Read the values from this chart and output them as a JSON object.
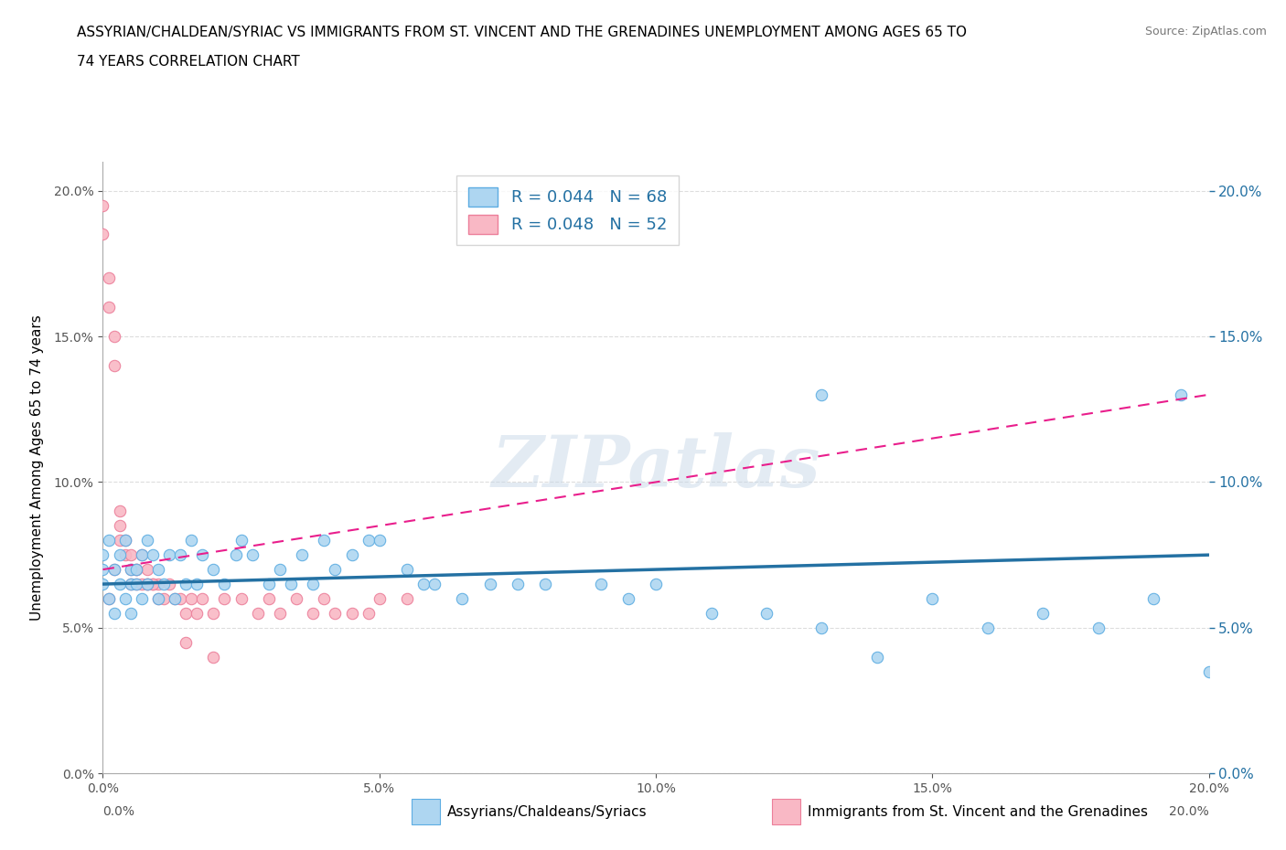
{
  "title_line1": "ASSYRIAN/CHALDEAN/SYRIAC VS IMMIGRANTS FROM ST. VINCENT AND THE GRENADINES UNEMPLOYMENT AMONG AGES 65 TO",
  "title_line2": "74 YEARS CORRELATION CHART",
  "source_text": "Source: ZipAtlas.com",
  "ylabel": "Unemployment Among Ages 65 to 74 years",
  "legend_blue_label": "Assyrians/Chaldeans/Syriacs",
  "legend_pink_label": "Immigrants from St. Vincent and the Grenadines",
  "R_blue": 0.044,
  "N_blue": 68,
  "R_pink": 0.048,
  "N_pink": 52,
  "blue_scatter_color": "#AED6F1",
  "blue_edge_color": "#5DADE2",
  "pink_scatter_color": "#F9B8C5",
  "pink_edge_color": "#EC7F9A",
  "trendline_blue_color": "#2471A3",
  "trendline_pink_color": "#E91E8C",
  "xmin": 0.0,
  "xmax": 0.2,
  "ymin": 0.0,
  "ymax": 0.21,
  "blue_scatter_x": [
    0.0,
    0.0,
    0.0,
    0.001,
    0.001,
    0.002,
    0.002,
    0.003,
    0.003,
    0.004,
    0.004,
    0.005,
    0.005,
    0.005,
    0.006,
    0.006,
    0.007,
    0.007,
    0.008,
    0.008,
    0.009,
    0.01,
    0.01,
    0.011,
    0.012,
    0.013,
    0.014,
    0.015,
    0.016,
    0.017,
    0.018,
    0.02,
    0.022,
    0.024,
    0.025,
    0.027,
    0.03,
    0.032,
    0.034,
    0.036,
    0.038,
    0.04,
    0.042,
    0.045,
    0.048,
    0.05,
    0.055,
    0.058,
    0.06,
    0.065,
    0.07,
    0.075,
    0.08,
    0.09,
    0.095,
    0.1,
    0.11,
    0.12,
    0.13,
    0.14,
    0.15,
    0.16,
    0.17,
    0.18,
    0.19,
    0.2,
    0.13,
    0.195
  ],
  "blue_scatter_y": [
    0.065,
    0.07,
    0.075,
    0.06,
    0.08,
    0.055,
    0.07,
    0.075,
    0.065,
    0.08,
    0.06,
    0.065,
    0.07,
    0.055,
    0.07,
    0.065,
    0.075,
    0.06,
    0.08,
    0.065,
    0.075,
    0.06,
    0.07,
    0.065,
    0.075,
    0.06,
    0.075,
    0.065,
    0.08,
    0.065,
    0.075,
    0.07,
    0.065,
    0.075,
    0.08,
    0.075,
    0.065,
    0.07,
    0.065,
    0.075,
    0.065,
    0.08,
    0.07,
    0.075,
    0.08,
    0.08,
    0.07,
    0.065,
    0.065,
    0.06,
    0.065,
    0.065,
    0.065,
    0.065,
    0.06,
    0.065,
    0.055,
    0.055,
    0.05,
    0.04,
    0.06,
    0.05,
    0.055,
    0.05,
    0.06,
    0.035,
    0.13,
    0.13
  ],
  "pink_scatter_x": [
    0.0,
    0.0,
    0.001,
    0.001,
    0.002,
    0.002,
    0.003,
    0.003,
    0.004,
    0.004,
    0.005,
    0.005,
    0.006,
    0.006,
    0.007,
    0.007,
    0.008,
    0.008,
    0.009,
    0.01,
    0.01,
    0.011,
    0.012,
    0.013,
    0.014,
    0.015,
    0.016,
    0.017,
    0.018,
    0.02,
    0.022,
    0.025,
    0.028,
    0.03,
    0.032,
    0.035,
    0.038,
    0.04,
    0.042,
    0.045,
    0.048,
    0.05,
    0.055,
    0.003,
    0.006,
    0.009,
    0.002,
    0.005,
    0.001,
    0.008,
    0.015,
    0.02
  ],
  "pink_scatter_y": [
    0.195,
    0.185,
    0.17,
    0.16,
    0.14,
    0.15,
    0.09,
    0.085,
    0.075,
    0.08,
    0.07,
    0.075,
    0.065,
    0.07,
    0.065,
    0.075,
    0.065,
    0.07,
    0.065,
    0.06,
    0.065,
    0.06,
    0.065,
    0.06,
    0.06,
    0.055,
    0.06,
    0.055,
    0.06,
    0.055,
    0.06,
    0.06,
    0.055,
    0.06,
    0.055,
    0.06,
    0.055,
    0.06,
    0.055,
    0.055,
    0.055,
    0.06,
    0.06,
    0.08,
    0.07,
    0.065,
    0.07,
    0.065,
    0.06,
    0.065,
    0.045,
    0.04
  ],
  "watermark_text": "ZIPatlas",
  "bg_color": "#ffffff",
  "grid_color": "#dddddd",
  "axis_label_color": "#2471A3",
  "bottom_tick_labels": [
    "0.0%",
    "20.0%"
  ]
}
